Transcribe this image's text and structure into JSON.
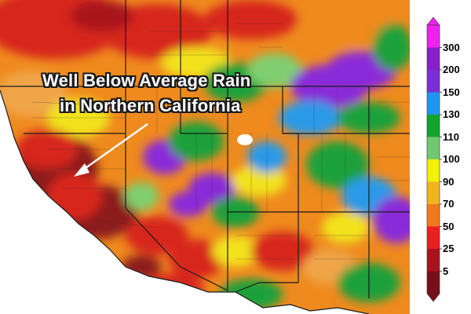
{
  "headline": {
    "line1": "Well Below Average Rain",
    "line2": "in Northern California"
  },
  "legend": {
    "labels": [
      "300",
      "200",
      "150",
      "130",
      "110",
      "100",
      "90",
      "70",
      "50",
      "25",
      "5"
    ],
    "colors": [
      "#ee22ee",
      "#8a1ec8",
      "#7b2ed6",
      "#1e96ef",
      "#13a52b",
      "#70c870",
      "#f2f200",
      "#f2b41e",
      "#ef7a1e",
      "#ed1e1e",
      "#a8141e",
      "#7a0f18"
    ]
  },
  "map": {
    "palette": {
      "deep_red": "#8c1a1a",
      "red": "#d7261e",
      "orange": "#ef8a1e",
      "light_orange": "#f0a54a",
      "yellow": "#f2e21e",
      "light_green": "#7fcf6f",
      "green": "#1aa03a",
      "blue": "#2a9ae8",
      "purple": "#8a2ad8",
      "ocean": "#ffffff"
    }
  }
}
